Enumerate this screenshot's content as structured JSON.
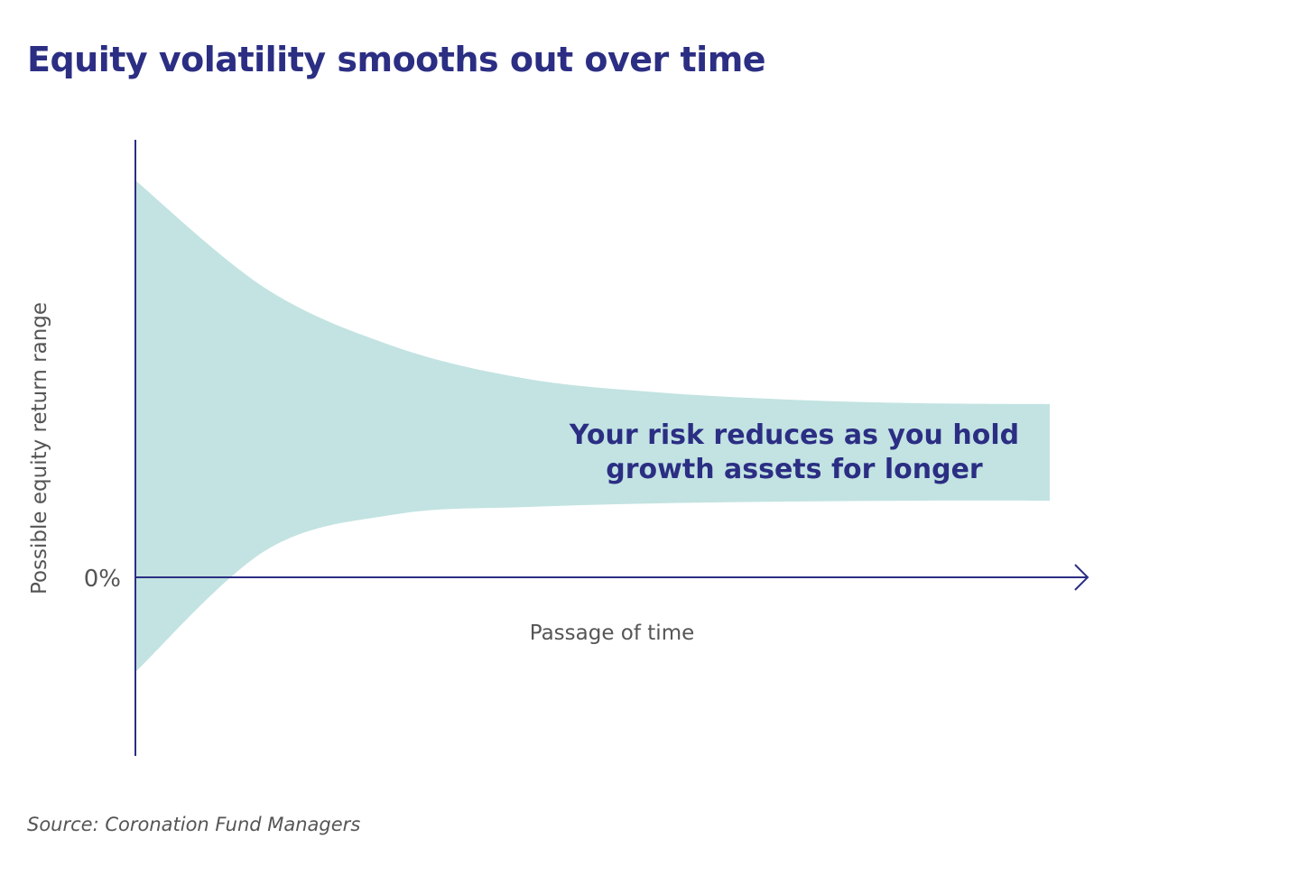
{
  "title": "Equity volatility smooths out over time",
  "source": "Source: Coronation Fund Managers",
  "colors": {
    "title": "#2b2e83",
    "axis": "#2b2e83",
    "band": "#c2e3e2",
    "annotation": "#2b2e83",
    "axis_text": "#555555"
  },
  "chart_data": {
    "type": "area",
    "title": "Equity volatility smooths out over time",
    "xlabel": "Passage of time",
    "ylabel": "Possible equity return range",
    "x_ticks": [],
    "y_ticks": [
      {
        "value": 0,
        "label": "0%"
      }
    ],
    "x_arrow": true,
    "grid": false,
    "legend": "none",
    "series": [
      {
        "upper": [
          4.4,
          3.2,
          2.55,
          2.2,
          2.05,
          1.97,
          1.93,
          1.92
        ],
        "lower": [
          -1.05,
          0.3,
          0.7,
          0.78,
          0.82,
          0.84,
          0.85,
          0.85
        ]
      }
    ],
    "annotation": "Your risk reduces as you hold growth assets for longer",
    "annotation_lines": [
      "Your risk reduces as you hold",
      "growth assets for longer"
    ]
  }
}
